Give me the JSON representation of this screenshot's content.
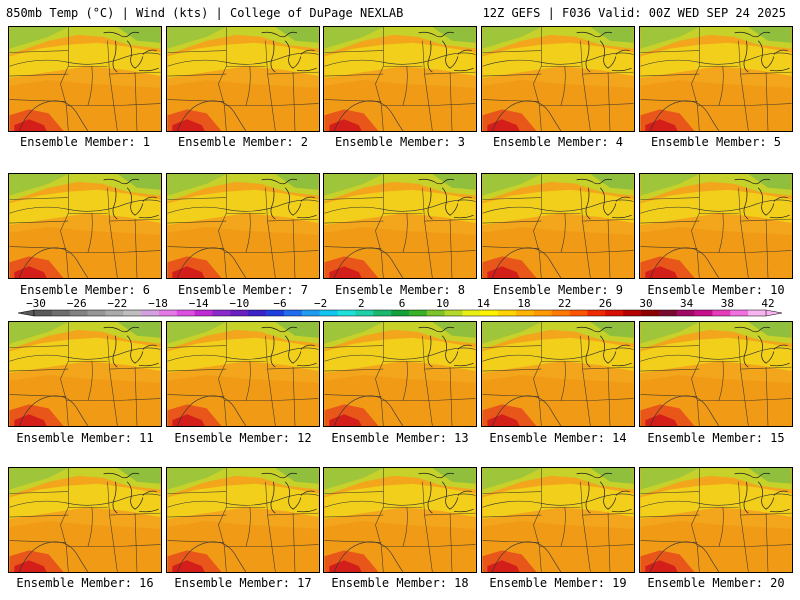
{
  "header": {
    "left": "850mb Temp (°C) | Wind (kts) | College of DuPage NEXLAB",
    "right": "12Z GEFS | F036 Valid: 00Z WED SEP 24 2025"
  },
  "member_label_prefix": "Ensemble Member: ",
  "members": [
    {
      "n": 1,
      "label": "Ensemble Member: 1"
    },
    {
      "n": 2,
      "label": "Ensemble Member: 2"
    },
    {
      "n": 3,
      "label": "Ensemble Member: 3"
    },
    {
      "n": 4,
      "label": "Ensemble Member: 4"
    },
    {
      "n": 5,
      "label": "Ensemble Member: 5"
    },
    {
      "n": 6,
      "label": "Ensemble Member: 6"
    },
    {
      "n": 7,
      "label": "Ensemble Member: 7"
    },
    {
      "n": 8,
      "label": "Ensemble Member: 8"
    },
    {
      "n": 9,
      "label": "Ensemble Member: 9"
    },
    {
      "n": 10,
      "label": "Ensemble Member: 10"
    },
    {
      "n": 11,
      "label": "Ensemble Member: 11"
    },
    {
      "n": 12,
      "label": "Ensemble Member: 12"
    },
    {
      "n": 13,
      "label": "Ensemble Member: 13"
    },
    {
      "n": 14,
      "label": "Ensemble Member: 14"
    },
    {
      "n": 15,
      "label": "Ensemble Member: 15"
    },
    {
      "n": 16,
      "label": "Ensemble Member: 16"
    },
    {
      "n": 17,
      "label": "Ensemble Member: 17"
    },
    {
      "n": 18,
      "label": "Ensemble Member: 18"
    },
    {
      "n": 19,
      "label": "Ensemble Member: 19"
    },
    {
      "n": 20,
      "label": "Ensemble Member: 20"
    }
  ],
  "colorbar": {
    "tick_labels": [
      "-30",
      "-26",
      "-22",
      "-18",
      "-14",
      "-10",
      "-6",
      "-2",
      "2",
      "6",
      "10",
      "14",
      "18",
      "22",
      "26",
      "30",
      "34",
      "38",
      "42"
    ],
    "colors": [
      "#5a5a5a",
      "#6e6e6e",
      "#828282",
      "#969696",
      "#aaaaaa",
      "#bebebe",
      "#d3a0e0",
      "#e47ae8",
      "#dc4fe0",
      "#c02ad4",
      "#8a2acb",
      "#6a1fc0",
      "#3a22c8",
      "#1e3ee0",
      "#1f6cf0",
      "#1d9cf0",
      "#12c4ee",
      "#1ee0d8",
      "#20d0a8",
      "#1bb870",
      "#12a03c",
      "#38b028",
      "#7cc42a",
      "#b6d82a",
      "#e8f018",
      "#fff200",
      "#ffd400",
      "#ffb400",
      "#ff9a00",
      "#ff7a00",
      "#ff5500",
      "#f02a00",
      "#d81000",
      "#b40000",
      "#8c0000",
      "#780a30",
      "#a00a64",
      "#c8108c",
      "#e63cbc",
      "#f070e0",
      "#f8b4f0"
    ]
  }
}
